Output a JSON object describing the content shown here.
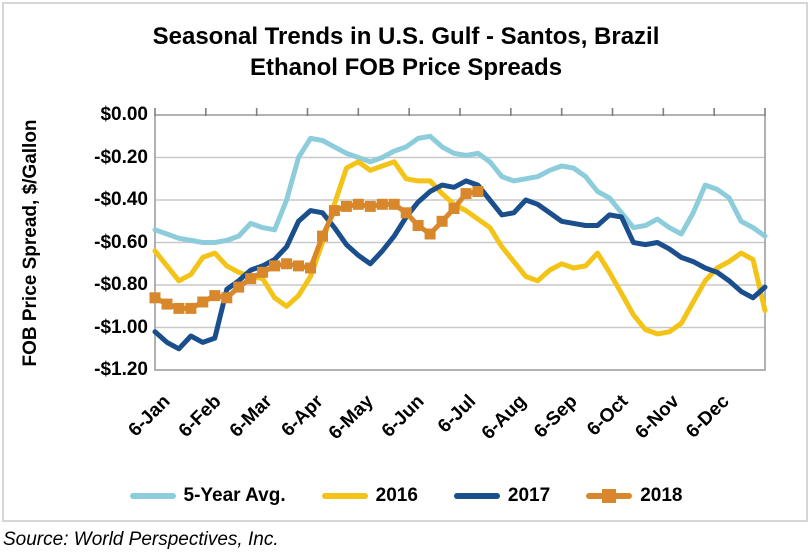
{
  "display_title": {
    "line1": "Seasonal Trends in U.S. Gulf - Santos, Brazil",
    "line2": "Ethanol FOB Price Spreads"
  },
  "source_note": "Source: World Perspectives, Inc.",
  "chart_data": {
    "type": "line",
    "title": "Seasonal Trends in U.S. Gulf - Santos, Brazil Ethanol FOB Price Spreads",
    "xlabel": "",
    "ylabel": "FOB Price Spread, $/Gallon",
    "ylim": [
      -1.2,
      0
    ],
    "y_tick_step": 0.2,
    "y_tick_labels": [
      "$0.00",
      "-$0.20",
      "-$0.40",
      "-$0.60",
      "-$0.80",
      "-$1.00",
      "-$1.20"
    ],
    "x_tick_labels": [
      "6-Jan",
      "6-Feb",
      "6-Mar",
      "6-Apr",
      "6-May",
      "6-Jun",
      "6-Jul",
      "6-Aug",
      "6-Sep",
      "6-Oct",
      "6-Nov",
      "6-Dec"
    ],
    "x_description": "weekly data points, early January through late December (52 points per full year; 2018 series ends in early July)",
    "grid": "horizontal",
    "legend_position": "bottom",
    "series": [
      {
        "name": "5-Year Avg.",
        "color": "#8dcddb",
        "marker": "none",
        "values": [
          -0.54,
          -0.56,
          -0.58,
          -0.59,
          -0.6,
          -0.6,
          -0.59,
          -0.57,
          -0.51,
          -0.53,
          -0.54,
          -0.4,
          -0.2,
          -0.11,
          -0.12,
          -0.15,
          -0.18,
          -0.2,
          -0.22,
          -0.2,
          -0.17,
          -0.15,
          -0.11,
          -0.1,
          -0.15,
          -0.18,
          -0.19,
          -0.18,
          -0.22,
          -0.29,
          -0.31,
          -0.3,
          -0.29,
          -0.26,
          -0.24,
          -0.25,
          -0.29,
          -0.36,
          -0.39,
          -0.46,
          -0.53,
          -0.52,
          -0.49,
          -0.53,
          -0.56,
          -0.46,
          -0.33,
          -0.35,
          -0.39,
          -0.5,
          -0.53,
          -0.57
        ]
      },
      {
        "name": "2016",
        "color": "#f3c317",
        "marker": "none",
        "values": [
          -0.64,
          -0.71,
          -0.78,
          -0.75,
          -0.67,
          -0.65,
          -0.71,
          -0.74,
          -0.76,
          -0.77,
          -0.86,
          -0.9,
          -0.85,
          -0.76,
          -0.6,
          -0.42,
          -0.25,
          -0.22,
          -0.26,
          -0.24,
          -0.22,
          -0.3,
          -0.31,
          -0.31,
          -0.37,
          -0.42,
          -0.45,
          -0.49,
          -0.53,
          -0.62,
          -0.69,
          -0.76,
          -0.78,
          -0.73,
          -0.7,
          -0.72,
          -0.71,
          -0.65,
          -0.74,
          -0.84,
          -0.94,
          -1.01,
          -1.03,
          -1.02,
          -0.98,
          -0.88,
          -0.78,
          -0.72,
          -0.69,
          -0.65,
          -0.68,
          -0.92
        ]
      },
      {
        "name": "2017",
        "color": "#1b4e8c",
        "marker": "none",
        "values": [
          -1.02,
          -1.07,
          -1.1,
          -1.04,
          -1.07,
          -1.05,
          -0.82,
          -0.78,
          -0.73,
          -0.71,
          -0.68,
          -0.62,
          -0.5,
          -0.45,
          -0.46,
          -0.53,
          -0.61,
          -0.66,
          -0.7,
          -0.64,
          -0.57,
          -0.48,
          -0.41,
          -0.36,
          -0.33,
          -0.34,
          -0.31,
          -0.33,
          -0.4,
          -0.47,
          -0.46,
          -0.4,
          -0.42,
          -0.46,
          -0.5,
          -0.51,
          -0.52,
          -0.52,
          -0.47,
          -0.48,
          -0.6,
          -0.61,
          -0.6,
          -0.63,
          -0.67,
          -0.69,
          -0.72,
          -0.74,
          -0.78,
          -0.83,
          -0.86,
          -0.81
        ]
      },
      {
        "name": "2018",
        "color": "#d8882b",
        "marker": "square",
        "values": [
          -0.86,
          -0.89,
          -0.91,
          -0.91,
          -0.88,
          -0.85,
          -0.86,
          -0.81,
          -0.77,
          -0.74,
          -0.71,
          -0.7,
          -0.71,
          -0.72,
          -0.57,
          -0.45,
          -0.43,
          -0.42,
          -0.43,
          -0.42,
          -0.42,
          -0.46,
          -0.52,
          -0.56,
          -0.5,
          -0.44,
          -0.37,
          -0.36
        ]
      }
    ]
  }
}
